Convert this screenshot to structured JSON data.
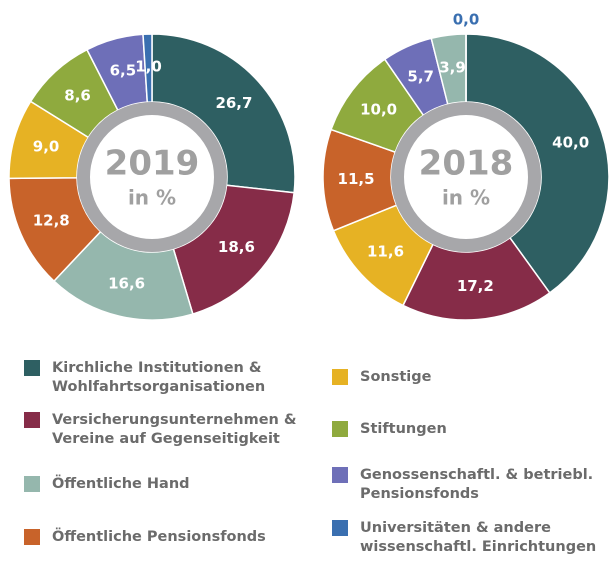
{
  "chart_data": [
    {
      "type": "pie",
      "title": "2019",
      "subtitle": "in %",
      "values": [
        26.7,
        18.6,
        16.6,
        12.8,
        9.0,
        8.6,
        6.5,
        1.0
      ],
      "value_labels": [
        "26,7",
        "18,6",
        "16,6",
        "12,8",
        "9,0",
        "8,6",
        "6,5",
        "1,0"
      ],
      "colors": [
        "#2e5f62",
        "#862c48",
        "#95b7ad",
        "#c8632a",
        "#e6b224",
        "#8faa3e",
        "#6e6fb8",
        "#3a6fb0"
      ]
    },
    {
      "type": "pie",
      "title": "2018",
      "subtitle": "in %",
      "values": [
        40.0,
        17.2,
        11.6,
        11.5,
        10.0,
        5.7,
        3.9,
        0.0
      ],
      "value_labels": [
        "40,0",
        "17,2",
        "11,6",
        "11,5",
        "10,0",
        "5,7",
        "3,9",
        "0,0"
      ],
      "colors": [
        "#2e5f62",
        "#862c48",
        "#e6b224",
        "#c8632a",
        "#8faa3e",
        "#6e6fb8",
        "#95b7ad",
        "#3a6fb0"
      ]
    }
  ],
  "legend": [
    {
      "name": [
        "Kirchliche Institutionen &",
        "Wohlfahrtsorganisationen"
      ],
      "color": "#2e5f62"
    },
    {
      "name": [
        "Versicherungsunternehmen &",
        "Vereine auf Gegenseitigkeit"
      ],
      "color": "#862c48"
    },
    {
      "name": [
        "Öffentliche Hand"
      ],
      "color": "#95b7ad"
    },
    {
      "name": [
        "Öffentliche Pensionsfonds"
      ],
      "color": "#c8632a"
    },
    {
      "name": [
        "Sonstige"
      ],
      "color": "#e6b224"
    },
    {
      "name": [
        "Stiftungen"
      ],
      "color": "#8faa3e"
    },
    {
      "name": [
        "Genossenschaftl. & betriebl.",
        "Pensionsfonds"
      ],
      "color": "#6e6fb8"
    },
    {
      "name": [
        "Universitäten & andere",
        "wissenschaftl. Einrichtungen"
      ],
      "color": "#3a6fb0"
    }
  ]
}
